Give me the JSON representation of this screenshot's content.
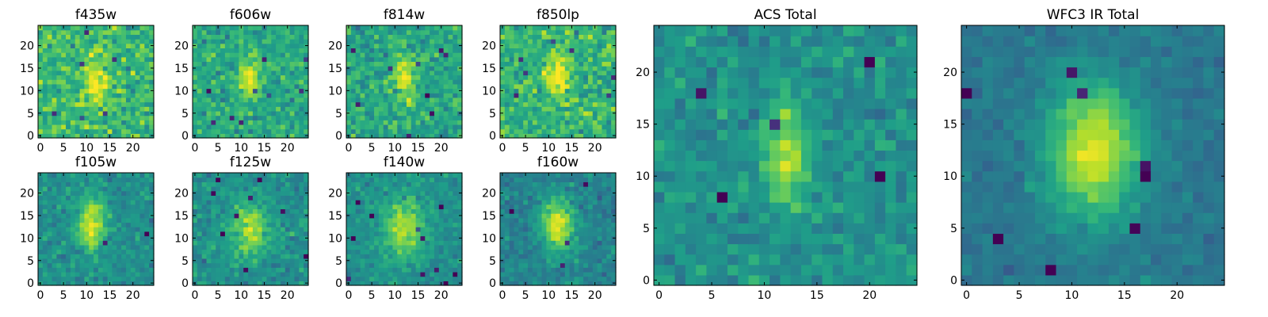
{
  "chart_data": [
    {
      "type": "heatmap",
      "title": "f435w",
      "xticks": [
        0,
        5,
        10,
        15,
        20
      ],
      "yticks": [
        0,
        5,
        10,
        15,
        20
      ],
      "shape": [
        25,
        25
      ],
      "source": {
        "cx": 12,
        "cy": 12,
        "sx": 1.5,
        "sy": 4,
        "amp": 0.35,
        "noise": 0.55,
        "base": 0.68,
        "seed": 11
      }
    },
    {
      "type": "heatmap",
      "title": "f606w",
      "xticks": [
        0,
        5,
        10,
        15,
        20
      ],
      "yticks": [
        0,
        5,
        10,
        15,
        20
      ],
      "shape": [
        25,
        25
      ],
      "source": {
        "cx": 12,
        "cy": 13,
        "sx": 1.5,
        "sy": 3,
        "amp": 0.4,
        "noise": 0.45,
        "base": 0.6,
        "seed": 23
      }
    },
    {
      "type": "heatmap",
      "title": "f814w",
      "xticks": [
        0,
        5,
        10,
        15,
        20
      ],
      "yticks": [
        0,
        5,
        10,
        15,
        20
      ],
      "shape": [
        25,
        25
      ],
      "source": {
        "cx": 12,
        "cy": 13,
        "sx": 1.5,
        "sy": 3.5,
        "amp": 0.4,
        "noise": 0.5,
        "base": 0.6,
        "seed": 37
      }
    },
    {
      "type": "heatmap",
      "title": "f850lp",
      "xticks": [
        0,
        5,
        10,
        15,
        20
      ],
      "yticks": [
        0,
        5,
        10,
        15,
        20
      ],
      "shape": [
        25,
        25
      ],
      "source": {
        "cx": 12,
        "cy": 13,
        "sx": 2,
        "sy": 3.5,
        "amp": 0.3,
        "noise": 0.55,
        "base": 0.65,
        "seed": 41
      }
    },
    {
      "type": "heatmap",
      "title": "f105w",
      "xticks": [
        0,
        5,
        10,
        15,
        20
      ],
      "yticks": [
        0,
        5,
        10,
        15,
        20
      ],
      "shape": [
        25,
        25
      ],
      "source": {
        "cx": 11,
        "cy": 13,
        "sx": 2,
        "sy": 4,
        "amp": 0.45,
        "noise": 0.35,
        "base": 0.5,
        "seed": 53
      }
    },
    {
      "type": "heatmap",
      "title": "f125w",
      "xticks": [
        0,
        5,
        10,
        15,
        20
      ],
      "yticks": [
        0,
        5,
        10,
        15,
        20
      ],
      "shape": [
        25,
        25
      ],
      "source": {
        "cx": 12,
        "cy": 12,
        "sx": 2.5,
        "sy": 4,
        "amp": 0.4,
        "noise": 0.35,
        "base": 0.5,
        "seed": 67
      }
    },
    {
      "type": "heatmap",
      "title": "f140w",
      "xticks": [
        0,
        5,
        10,
        15,
        20
      ],
      "yticks": [
        0,
        5,
        10,
        15,
        20
      ],
      "shape": [
        25,
        25
      ],
      "source": {
        "cx": 12,
        "cy": 12,
        "sx": 3,
        "sy": 4.5,
        "amp": 0.4,
        "noise": 0.3,
        "base": 0.5,
        "seed": 71
      }
    },
    {
      "type": "heatmap",
      "title": "f160w",
      "xticks": [
        0,
        5,
        10,
        15,
        20
      ],
      "yticks": [
        0,
        5,
        10,
        15,
        20
      ],
      "shape": [
        25,
        25
      ],
      "source": {
        "cx": 12,
        "cy": 13,
        "sx": 2.5,
        "sy": 4,
        "amp": 0.5,
        "noise": 0.3,
        "base": 0.45,
        "seed": 83
      }
    },
    {
      "type": "heatmap",
      "title": "ACS Total",
      "xticks": [
        0,
        5,
        10,
        15,
        20
      ],
      "yticks": [
        0,
        5,
        10,
        15,
        20
      ],
      "shape": [
        25,
        25
      ],
      "source": {
        "cx": 12,
        "cy": 12,
        "sx": 1.5,
        "sy": 3.5,
        "amp": 0.4,
        "noise": 0.35,
        "base": 0.5,
        "seed": 97
      }
    },
    {
      "type": "heatmap",
      "title": "WFC3 IR Total",
      "xticks": [
        0,
        5,
        10,
        15,
        20
      ],
      "yticks": [
        0,
        5,
        10,
        15,
        20
      ],
      "shape": [
        25,
        25
      ],
      "source": {
        "cx": 12,
        "cy": 12.5,
        "sx": 3,
        "sy": 4.5,
        "amp": 0.55,
        "noise": 0.2,
        "base": 0.4,
        "seed": 101
      }
    }
  ]
}
